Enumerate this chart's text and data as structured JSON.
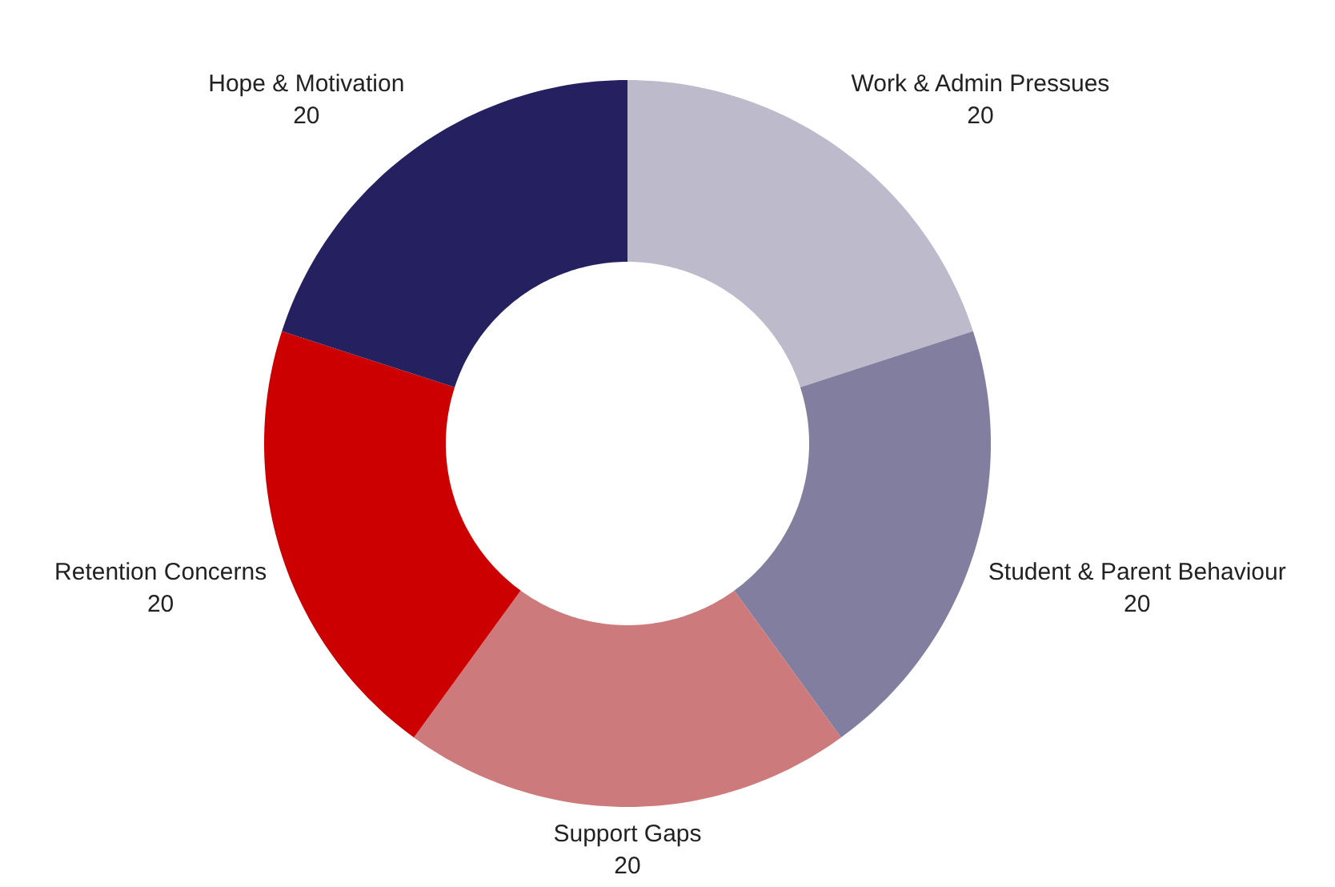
{
  "chart_data": {
    "type": "donut",
    "categories": [
      "Work & Admin Pressues",
      "Student & Parent Behaviour",
      "Support Gaps",
      "Retention Concerns",
      "Hope & Motivation"
    ],
    "values": [
      20,
      20,
      20,
      20,
      20
    ],
    "colors": [
      "#bdbacc",
      "#827e9f",
      "#cc7a7c",
      "#cc0000",
      "#252060"
    ],
    "data_labels": true,
    "legend": false
  }
}
